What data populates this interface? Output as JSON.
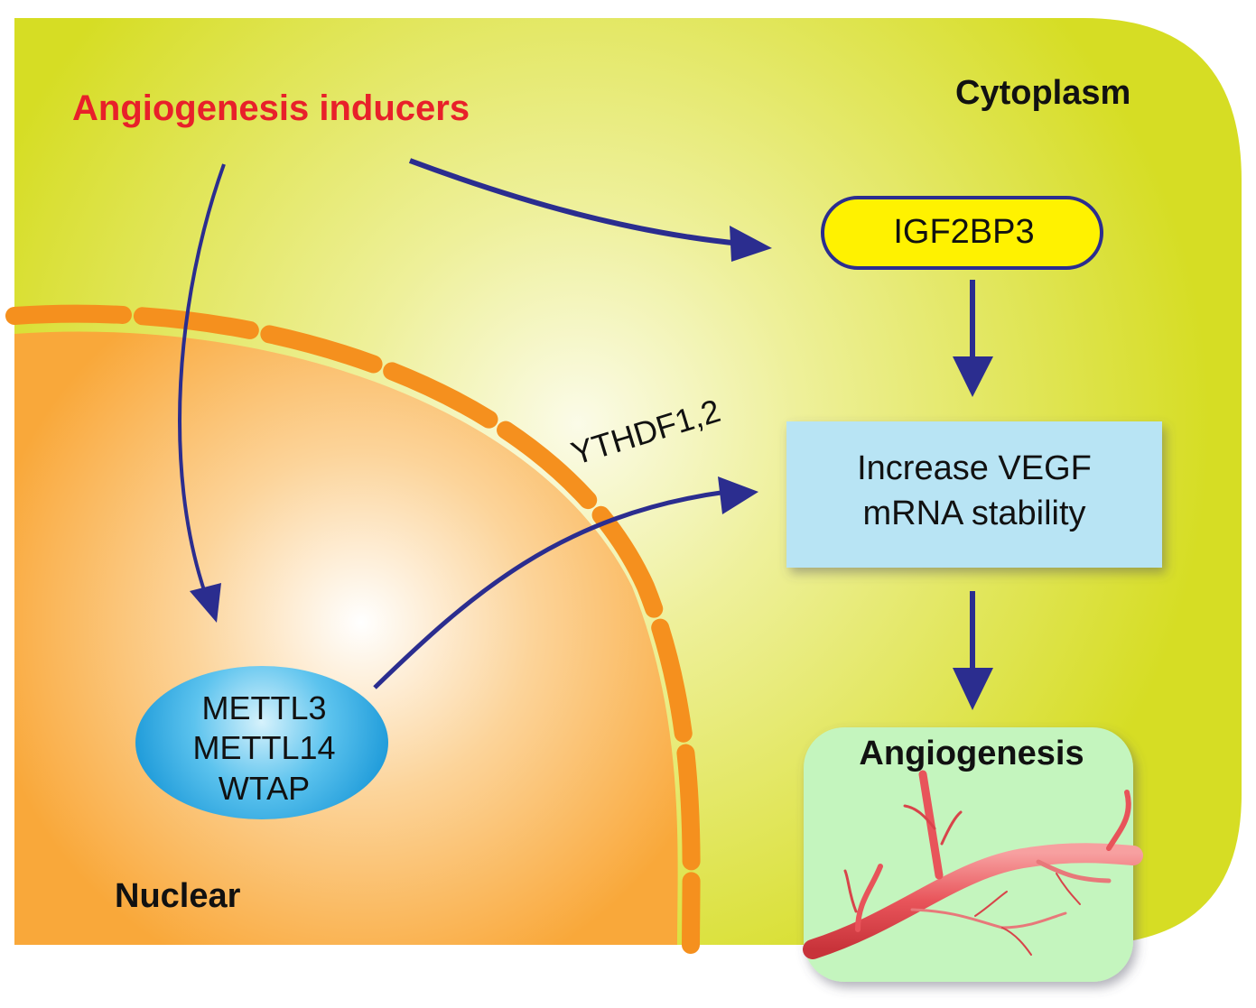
{
  "labels": {
    "inducers": "Angiogenesis inducers",
    "cytoplasm": "Cytoplasm",
    "nuclear": "Nuclear",
    "igf2bp3": "IGF2BP3",
    "ythdf": "YTHDF1,2",
    "vegf_line1": "Increase VEGF",
    "vegf_line2": "mRNA stability",
    "writers": [
      "METTL3",
      "METTL14",
      "WTAP"
    ],
    "angiogenesis": "Angiogenesis"
  },
  "colors": {
    "cytoplasm": "#d6dd24",
    "nucleus": "#f9a83a",
    "membrane": "#f5901e",
    "arrow": "#2b2d8f",
    "inducers_text": "#e8202a",
    "igf2bp3_fill": "#fff200",
    "vegf_box": "#b8e4f4",
    "angiogenesis_box": "#c4f5be",
    "vessel": "#e8545a",
    "writers_fill": "#29a9e0"
  }
}
